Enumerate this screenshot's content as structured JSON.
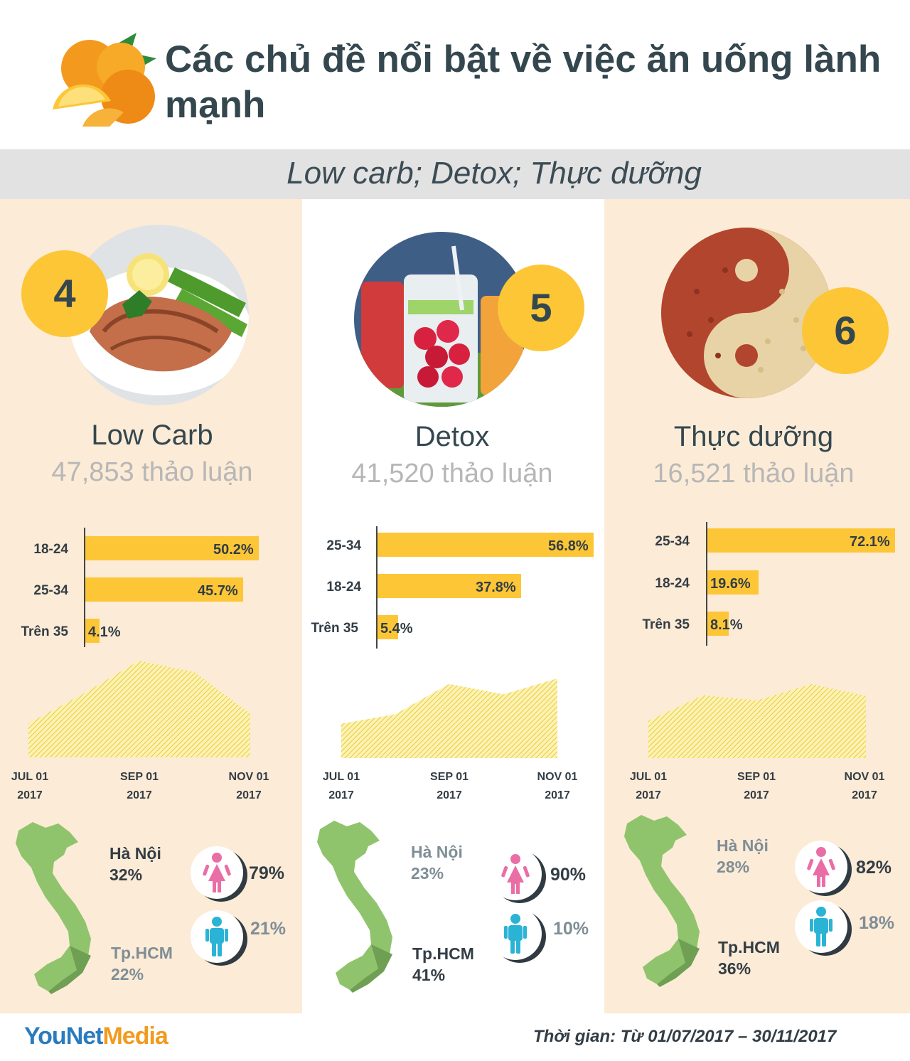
{
  "title": "Các chủ đề nổi bật về việc ăn uống lành mạnh",
  "subtitle": "Low carb; Detox; Thực dưỡng",
  "colors": {
    "accent": "#fcc637",
    "panel": "#fcebd6",
    "female": "#ea6ea6",
    "male": "#2bb3d6",
    "map": "#8fc46d"
  },
  "topics": [
    {
      "number": "4",
      "name": "Low Carb",
      "count": "47,853 thảo luận",
      "age_bars": [
        {
          "label": "18-24",
          "value": 50.2,
          "text": "50.2%"
        },
        {
          "label": "25-34",
          "value": 45.7,
          "text": "45.7%"
        },
        {
          "label": "Trên 35",
          "value": 4.1,
          "text": "4.1%"
        }
      ],
      "trend": [
        0.35,
        0.66,
        1.0,
        0.88,
        0.45
      ],
      "ticks": [
        {
          "line1": "JUL 01",
          "line2": "2017"
        },
        {
          "line1": "SEP 01",
          "line2": "2017"
        },
        {
          "line1": "NOV 01",
          "line2": "2017"
        }
      ],
      "regions": [
        {
          "name": "Hà Nội",
          "pct": "32%"
        },
        {
          "name": "Tp.HCM",
          "pct": "22%"
        }
      ],
      "gender": {
        "female": "79%",
        "male": "21%"
      }
    },
    {
      "number": "5",
      "name": "Detox",
      "count": "41,520 thảo luận",
      "age_bars": [
        {
          "label": "25-34",
          "value": 56.8,
          "text": "56.8%"
        },
        {
          "label": "18-24",
          "value": 37.8,
          "text": "37.8%"
        },
        {
          "label": "Trên 35",
          "value": 5.4,
          "text": "5.4%"
        }
      ],
      "trend": [
        0.43,
        0.55,
        0.93,
        0.8,
        1.0
      ],
      "ticks": [
        {
          "line1": "JUL 01",
          "line2": "2017"
        },
        {
          "line1": "SEP 01",
          "line2": "2017"
        },
        {
          "line1": "NOV 01",
          "line2": "2017"
        }
      ],
      "regions": [
        {
          "name": "Hà Nội",
          "pct": "23%"
        },
        {
          "name": "Tp.HCM",
          "pct": "41%"
        }
      ],
      "gender": {
        "female": "90%",
        "male": "10%"
      }
    },
    {
      "number": "6",
      "name": "Thực dưỡng",
      "count": "16,521 thảo luận",
      "age_bars": [
        {
          "label": "25-34",
          "value": 72.1,
          "text": "72.1%"
        },
        {
          "label": "18-24",
          "value": 19.6,
          "text": "19.6%"
        },
        {
          "label": "Trên 35",
          "value": 8.1,
          "text": "8.1%"
        }
      ],
      "trend": [
        0.5,
        0.85,
        0.78,
        1.0,
        0.84
      ],
      "ticks": [
        {
          "line1": "JUL 01",
          "line2": "2017"
        },
        {
          "line1": "SEP 01",
          "line2": "2017"
        },
        {
          "line1": "NOV 01",
          "line2": "2017"
        }
      ],
      "regions": [
        {
          "name": "Hà Nội",
          "pct": "28%"
        },
        {
          "name": "Tp.HCM",
          "pct": "36%"
        }
      ],
      "gender": {
        "female": "82%",
        "male": "18%"
      }
    }
  ],
  "brand": {
    "part1": "YouNet",
    "part2": "Media"
  },
  "footer": "Thời gian: Từ 01/07/2017 – 30/11/2017"
}
